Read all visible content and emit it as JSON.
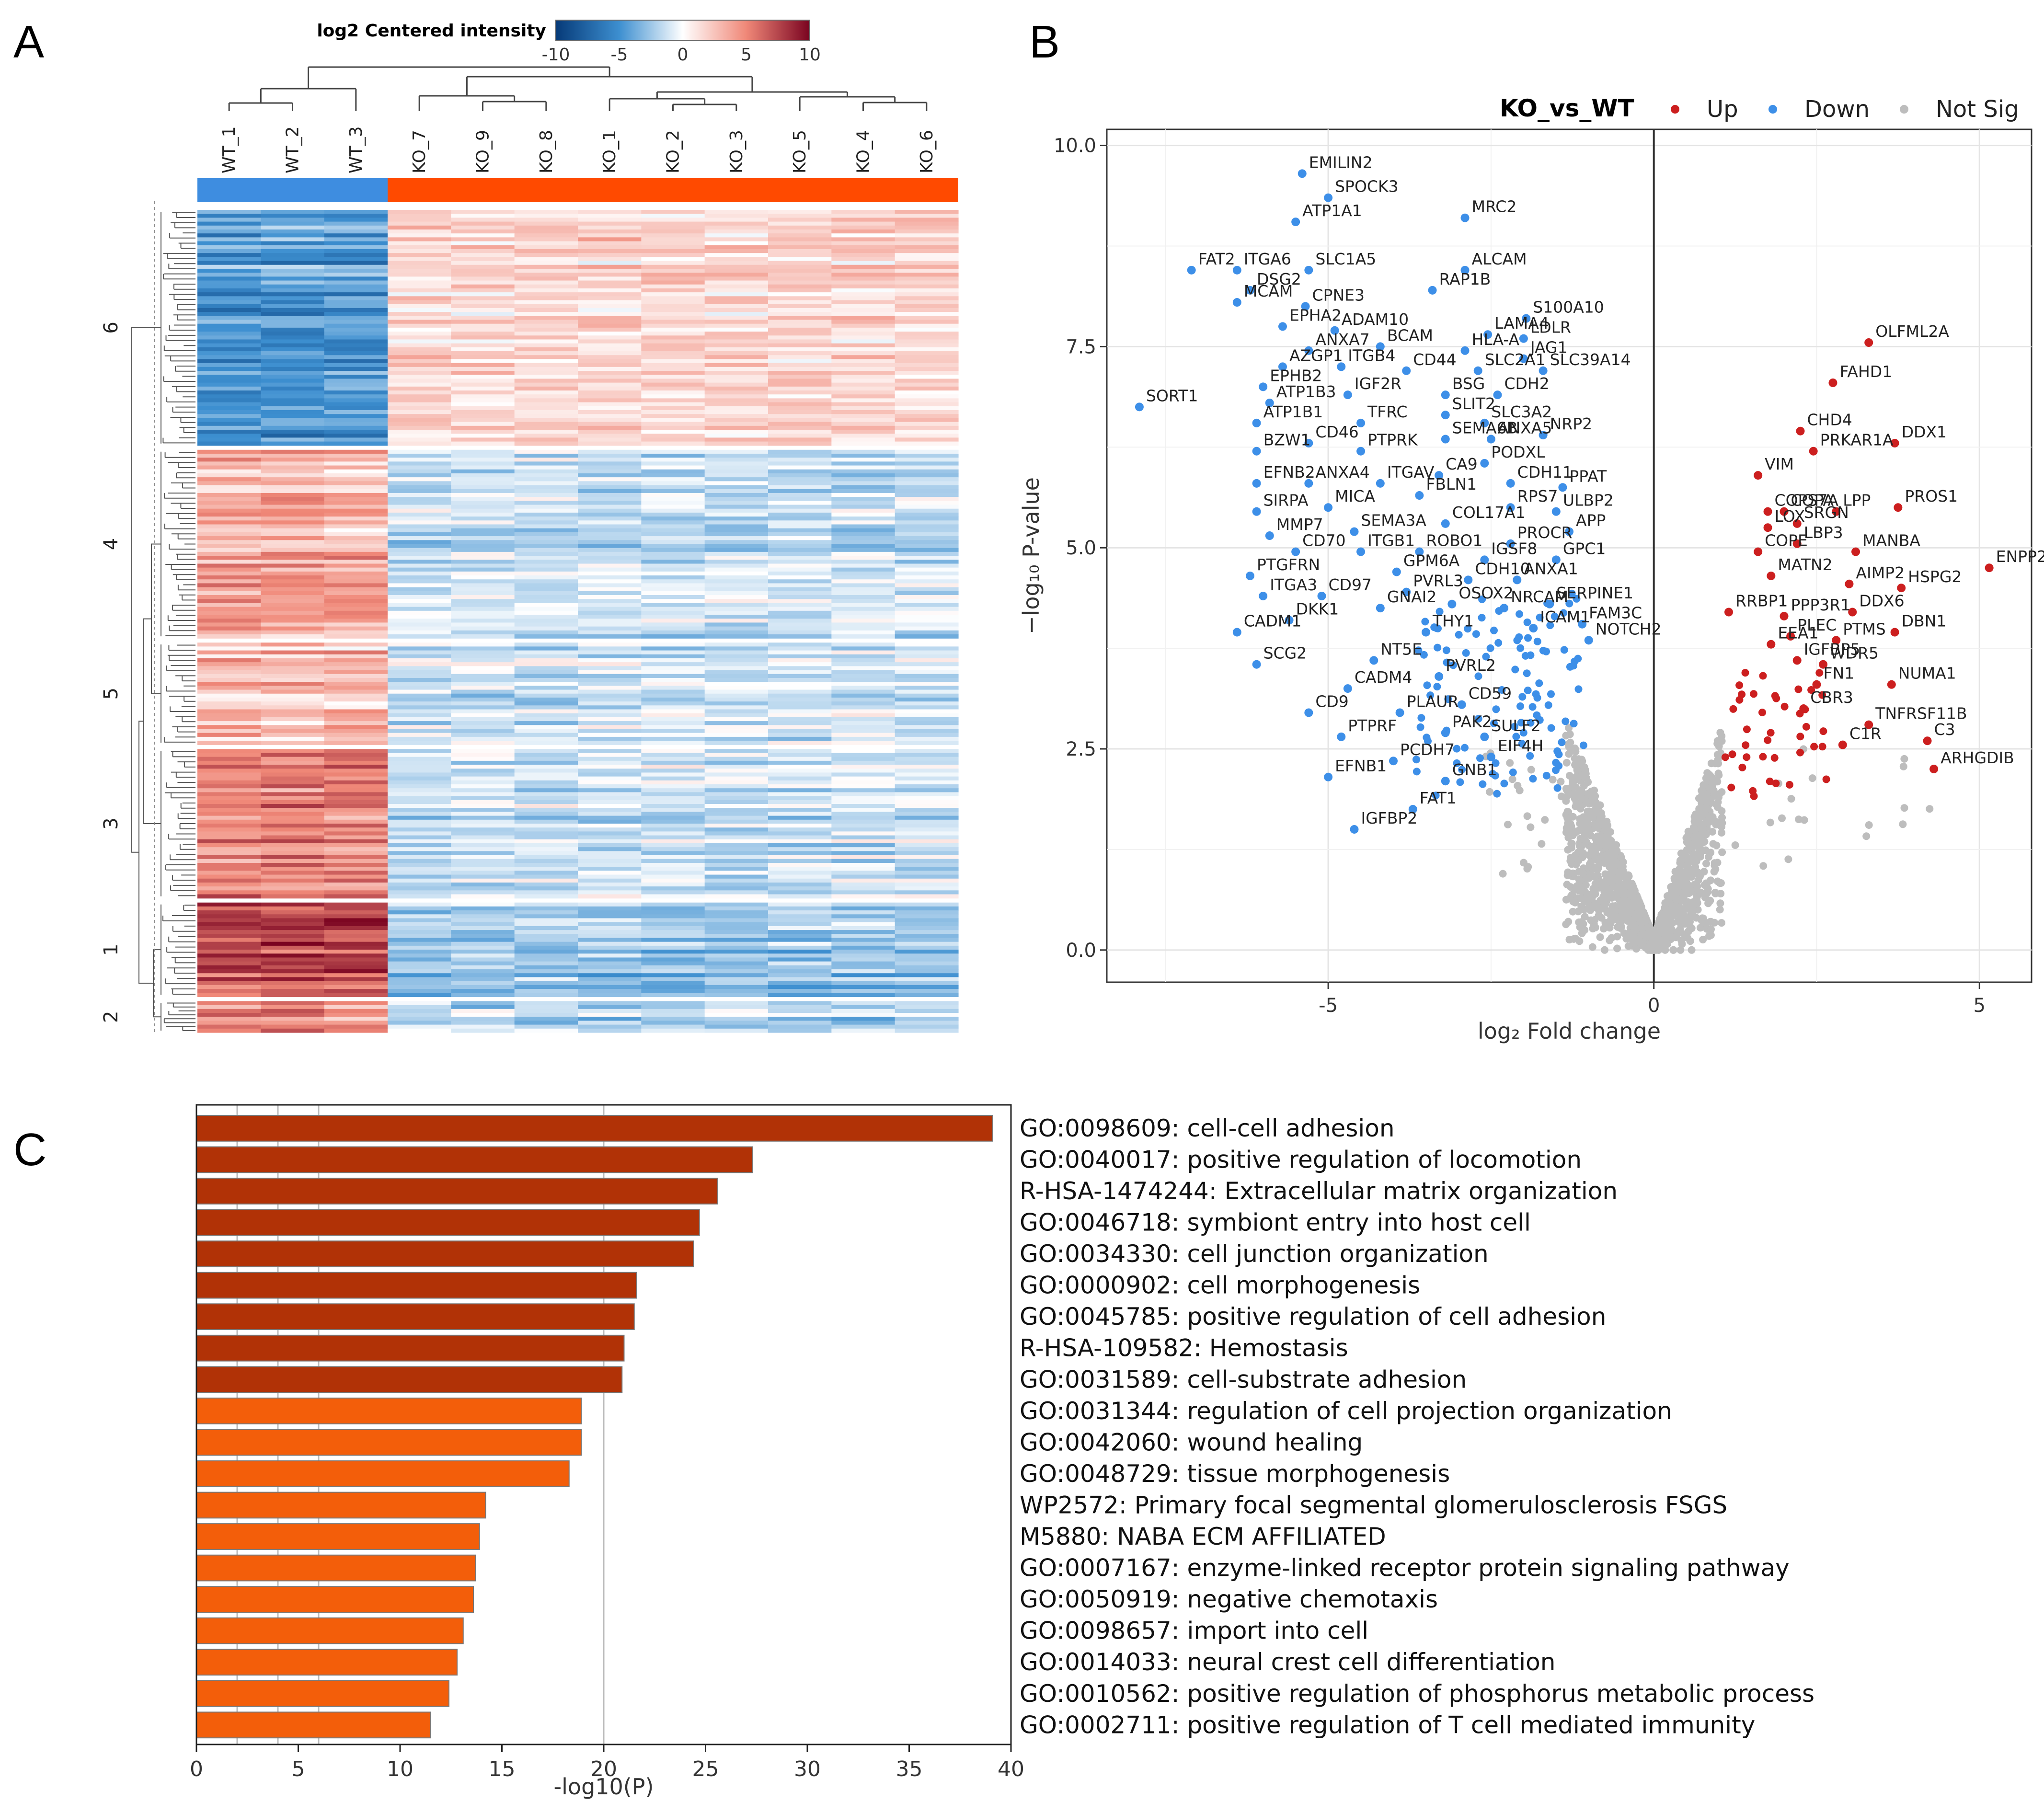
{
  "colors": {
    "wt": "#3e8de0",
    "ko": "#ff4a00",
    "up": "#cc1f1f",
    "down": "#3d8fe8",
    "notsig": "#bdbdbd",
    "bar_dark": "#b13206",
    "bar_light": "#f35e0a"
  },
  "panels": {
    "a": "A",
    "b": "B",
    "c": "C"
  },
  "chart_data": [
    {
      "type": "heatmap",
      "colorbar": {
        "title": "log2 Centered intensity",
        "ticks": [
          "-10",
          "-5",
          "0",
          "5",
          "10"
        ],
        "range": [
          -10,
          10
        ]
      },
      "columns": [
        "WT_1",
        "WT_2",
        "WT_3",
        "KO_7",
        "KO_9",
        "KO_8",
        "KO_1",
        "KO_2",
        "KO_3",
        "KO_5",
        "KO_4",
        "KO_6"
      ],
      "groups": [
        {
          "name": "WT",
          "count": 3
        },
        {
          "name": "KO",
          "count": 9
        }
      ],
      "clusters": [
        {
          "label": "6",
          "rows": 60,
          "wt_mean": -4.5,
          "ko_mean": 1.8
        },
        {
          "label": "4",
          "rows": 48,
          "wt_mean": 3.2,
          "ko_mean": -1.6
        },
        {
          "label": "5",
          "rows": 26,
          "wt_mean": 2.8,
          "ko_mean": -1.2
        },
        {
          "label": "3",
          "rows": 38,
          "wt_mean": 5.0,
          "ko_mean": -1.4
        },
        {
          "label": "1",
          "rows": 24,
          "wt_mean": 7.2,
          "ko_mean": -2.6
        },
        {
          "label": "2",
          "rows": 8,
          "wt_mean": 4.5,
          "ko_mean": -2.0
        }
      ]
    },
    {
      "type": "scatter",
      "title": "KO_vs_WT",
      "legend": [
        "Up",
        "Down",
        "Not Sig"
      ],
      "xlabel": "log₂ Fold change",
      "ylabel": "−log₁₀ P-value",
      "xlim": [
        -8.4,
        5.8
      ],
      "ylim": [
        -0.4,
        10.2
      ],
      "xticks": [
        "-5",
        "0",
        "5"
      ],
      "yticks": [
        "0.0",
        "2.5",
        "5.0",
        "7.5",
        "10.0"
      ],
      "down_genes": [
        {
          "g": "EMILIN2",
          "x": -5.4,
          "y": 9.65
        },
        {
          "g": "SPOCK3",
          "x": -5.0,
          "y": 9.35
        },
        {
          "g": "MRC2",
          "x": -2.9,
          "y": 9.1
        },
        {
          "g": "ATP1A1",
          "x": -5.5,
          "y": 9.05
        },
        {
          "g": "ITGA6",
          "x": -6.4,
          "y": 8.45
        },
        {
          "g": "SLC1A5",
          "x": -5.3,
          "y": 8.45
        },
        {
          "g": "ALCAM",
          "x": -2.9,
          "y": 8.45
        },
        {
          "g": "FAT2",
          "x": -7.1,
          "y": 8.45
        },
        {
          "g": "RAP1B",
          "x": -3.4,
          "y": 8.2
        },
        {
          "g": "DSG2",
          "x": -6.2,
          "y": 8.2
        },
        {
          "g": "MCAM",
          "x": -6.4,
          "y": 8.05
        },
        {
          "g": "CPNE3",
          "x": -5.35,
          "y": 8.0
        },
        {
          "g": "S100A10",
          "x": -1.96,
          "y": 7.85
        },
        {
          "g": "EPHA2",
          "x": -5.7,
          "y": 7.75
        },
        {
          "g": "ADAM10",
          "x": -4.9,
          "y": 7.7
        },
        {
          "g": "LAMA4",
          "x": -2.55,
          "y": 7.65
        },
        {
          "g": "LDLR",
          "x": -2.0,
          "y": 7.6
        },
        {
          "g": "ANXA7",
          "x": -5.3,
          "y": 7.45
        },
        {
          "g": "BCAM",
          "x": -4.2,
          "y": 7.5
        },
        {
          "g": "HLA-A",
          "x": -2.9,
          "y": 7.45
        },
        {
          "g": "JAG1",
          "x": -2.0,
          "y": 7.35
        },
        {
          "g": "AZGP1",
          "x": -5.7,
          "y": 7.25
        },
        {
          "g": "ITGB4",
          "x": -4.8,
          "y": 7.25
        },
        {
          "g": "CD44",
          "x": -3.8,
          "y": 7.2
        },
        {
          "g": "SLC2A1",
          "x": -2.7,
          "y": 7.2
        },
        {
          "g": "SLC39A14",
          "x": -1.7,
          "y": 7.2
        },
        {
          "g": "EPHB2",
          "x": -6.0,
          "y": 7.0
        },
        {
          "g": "IGF2R",
          "x": -4.7,
          "y": 6.9
        },
        {
          "g": "BSG",
          "x": -3.2,
          "y": 6.9
        },
        {
          "g": "CDH2",
          "x": -2.4,
          "y": 6.9
        },
        {
          "g": "SORT1",
          "x": -7.9,
          "y": 6.75
        },
        {
          "g": "ATP1B3",
          "x": -5.9,
          "y": 6.8
        },
        {
          "g": "SLIT2",
          "x": -3.2,
          "y": 6.65
        },
        {
          "g": "SLC3A2",
          "x": -2.6,
          "y": 6.55
        },
        {
          "g": "ATP1B1",
          "x": -6.1,
          "y": 6.55
        },
        {
          "g": "TFRC",
          "x": -4.5,
          "y": 6.55
        },
        {
          "g": "NRP2",
          "x": -1.7,
          "y": 6.4
        },
        {
          "g": "SEMA6B",
          "x": -3.2,
          "y": 6.35
        },
        {
          "g": "ANXA5",
          "x": -2.5,
          "y": 6.35
        },
        {
          "g": "CD46",
          "x": -5.3,
          "y": 6.3
        },
        {
          "g": "PTPRK",
          "x": -4.5,
          "y": 6.2
        },
        {
          "g": "BZW1",
          "x": -6.1,
          "y": 6.2
        },
        {
          "g": "PODXL",
          "x": -2.6,
          "y": 6.05
        },
        {
          "g": "CA9",
          "x": -3.3,
          "y": 5.9
        },
        {
          "g": "EFNB2",
          "x": -6.1,
          "y": 5.8
        },
        {
          "g": "ANXA4",
          "x": -5.3,
          "y": 5.8
        },
        {
          "g": "ITGAV",
          "x": -4.2,
          "y": 5.8
        },
        {
          "g": "CDH11",
          "x": -2.2,
          "y": 5.8
        },
        {
          "g": "PPAT",
          "x": -1.4,
          "y": 5.75
        },
        {
          "g": "FBLN1",
          "x": -3.6,
          "y": 5.65
        },
        {
          "g": "SIRPA",
          "x": -6.1,
          "y": 5.45
        },
        {
          "g": "MICA",
          "x": -5.0,
          "y": 5.5
        },
        {
          "g": "RPS7",
          "x": -2.2,
          "y": 5.5
        },
        {
          "g": "ULBP2",
          "x": -1.5,
          "y": 5.45
        },
        {
          "g": "COL17A1",
          "x": -3.2,
          "y": 5.3
        },
        {
          "g": "MMP7",
          "x": -5.9,
          "y": 5.15
        },
        {
          "g": "SEMA3A",
          "x": -4.6,
          "y": 5.2
        },
        {
          "g": "APP",
          "x": -1.3,
          "y": 5.2
        },
        {
          "g": "PROCR",
          "x": -2.2,
          "y": 5.05
        },
        {
          "g": "CD70",
          "x": -5.5,
          "y": 4.95
        },
        {
          "g": "ITGB1",
          "x": -4.5,
          "y": 4.95
        },
        {
          "g": "ROBO1",
          "x": -3.6,
          "y": 4.95
        },
        {
          "g": "GPC1",
          "x": -1.5,
          "y": 4.85
        },
        {
          "g": "IGSF8",
          "x": -2.6,
          "y": 4.85
        },
        {
          "g": "PTGFRN",
          "x": -6.2,
          "y": 4.65
        },
        {
          "g": "GPM6A",
          "x": -3.95,
          "y": 4.7
        },
        {
          "g": "ANXA1",
          "x": -2.1,
          "y": 4.6
        },
        {
          "g": "CDH10",
          "x": -2.85,
          "y": 4.6
        },
        {
          "g": "ITGA3",
          "x": -6.0,
          "y": 4.4
        },
        {
          "g": "CD97",
          "x": -5.1,
          "y": 4.4
        },
        {
          "g": "PVRL3",
          "x": -3.8,
          "y": 4.45
        },
        {
          "g": "SERPINE1",
          "x": -1.6,
          "y": 4.3
        },
        {
          "g": "FAM3C",
          "x": -1.1,
          "y": 4.05
        },
        {
          "g": "OSOX2",
          "x": -3.1,
          "y": 4.3
        },
        {
          "g": "NRCAM",
          "x": -2.3,
          "y": 4.25
        },
        {
          "g": "GNAI2",
          "x": -4.2,
          "y": 4.25
        },
        {
          "g": "ICAM1",
          "x": -1.85,
          "y": 4.0
        },
        {
          "g": "THY1",
          "x": -3.5,
          "y": 3.95
        },
        {
          "g": "NOTCH2",
          "x": -1.0,
          "y": 3.85
        },
        {
          "g": "CADM1",
          "x": -6.4,
          "y": 3.95
        },
        {
          "g": "DKK1",
          "x": -5.6,
          "y": 4.1
        },
        {
          "g": "NT5E",
          "x": -4.3,
          "y": 3.6
        },
        {
          "g": "SCG2",
          "x": -6.1,
          "y": 3.55
        },
        {
          "g": "PVRL2",
          "x": -3.3,
          "y": 3.4
        },
        {
          "g": "CADM4",
          "x": -4.7,
          "y": 3.25
        },
        {
          "g": "CD59",
          "x": -2.95,
          "y": 3.05
        },
        {
          "g": "CD9",
          "x": -5.3,
          "y": 2.95
        },
        {
          "g": "PLAUR",
          "x": -3.9,
          "y": 2.95
        },
        {
          "g": "PTPRF",
          "x": -4.8,
          "y": 2.65
        },
        {
          "g": "PAK2",
          "x": -3.2,
          "y": 2.7
        },
        {
          "g": "SULF2",
          "x": -2.6,
          "y": 2.65
        },
        {
          "g": "PCDH7",
          "x": -4.0,
          "y": 2.35
        },
        {
          "g": "EIF4H",
          "x": -2.5,
          "y": 2.4
        },
        {
          "g": "EFNB1",
          "x": -5.0,
          "y": 2.15
        },
        {
          "g": "GNB1",
          "x": -3.2,
          "y": 2.1
        },
        {
          "g": "FAT1",
          "x": -3.7,
          "y": 1.75
        },
        {
          "g": "IGFBP2",
          "x": -4.6,
          "y": 1.5
        }
      ],
      "up_genes": [
        {
          "g": "OLFML2A",
          "x": 3.3,
          "y": 7.55
        },
        {
          "g": "FAHD1",
          "x": 2.75,
          "y": 7.05
        },
        {
          "g": "CHD4",
          "x": 2.25,
          "y": 6.45
        },
        {
          "g": "PRKAR1A",
          "x": 2.45,
          "y": 6.2
        },
        {
          "g": "DDX1",
          "x": 3.7,
          "y": 6.3
        },
        {
          "g": "VIM",
          "x": 1.6,
          "y": 5.9
        },
        {
          "g": "COPA",
          "x": 2.0,
          "y": 5.45
        },
        {
          "g": "LPP",
          "x": 2.8,
          "y": 5.45
        },
        {
          "g": "PROS1",
          "x": 3.75,
          "y": 5.5
        },
        {
          "g": "COPS7A",
          "x": 1.75,
          "y": 5.45
        },
        {
          "g": "SRGN",
          "x": 2.2,
          "y": 5.3
        },
        {
          "g": "LOX",
          "x": 1.75,
          "y": 5.25
        },
        {
          "g": "LBP3",
          "x": 2.2,
          "y": 5.05
        },
        {
          "g": "MANBA",
          "x": 3.1,
          "y": 4.95
        },
        {
          "g": "COPE",
          "x": 1.6,
          "y": 4.95
        },
        {
          "g": "ENPP2",
          "x": 5.15,
          "y": 4.75
        },
        {
          "g": "MATN2",
          "x": 1.8,
          "y": 4.65
        },
        {
          "g": "AIMP2",
          "x": 3.0,
          "y": 4.55
        },
        {
          "g": "HSPG2",
          "x": 3.8,
          "y": 4.5
        },
        {
          "g": "RRBP1",
          "x": 1.15,
          "y": 4.2
        },
        {
          "g": "PPP3R1",
          "x": 2.0,
          "y": 4.15
        },
        {
          "g": "DDX6",
          "x": 3.05,
          "y": 4.2
        },
        {
          "g": "DBN1",
          "x": 3.7,
          "y": 3.95
        },
        {
          "g": "PLEC",
          "x": 2.1,
          "y": 3.9
        },
        {
          "g": "PTMS",
          "x": 2.8,
          "y": 3.85
        },
        {
          "g": "EEA1",
          "x": 1.8,
          "y": 3.8
        },
        {
          "g": "IGFBP5",
          "x": 2.2,
          "y": 3.6
        },
        {
          "g": "WDR5",
          "x": 2.6,
          "y": 3.55
        },
        {
          "g": "FN1",
          "x": 2.5,
          "y": 3.3
        },
        {
          "g": "NUMA1",
          "x": 3.65,
          "y": 3.3
        },
        {
          "g": "CBR3",
          "x": 2.3,
          "y": 3.0
        },
        {
          "g": "TNFRSF11B",
          "x": 3.3,
          "y": 2.8
        },
        {
          "g": "C3",
          "x": 4.2,
          "y": 2.6
        },
        {
          "g": "C1R",
          "x": 2.9,
          "y": 2.55
        },
        {
          "g": "ARHGDIB",
          "x": 4.3,
          "y": 2.25
        }
      ]
    },
    {
      "type": "bar",
      "orientation": "horizontal",
      "xlabel": "-log10(P)",
      "xlim": [
        0,
        40
      ],
      "xticks": [
        "0",
        "5",
        "10",
        "15",
        "20",
        "25",
        "30",
        "35",
        "40"
      ],
      "categories": [
        "GO:0098609: cell-cell adhesion",
        "GO:0040017: positive regulation of locomotion",
        "R-HSA-1474244: Extracellular matrix organization",
        "GO:0046718: symbiont entry into host cell",
        "GO:0034330: cell junction organization",
        "GO:0000902: cell morphogenesis",
        "GO:0045785: positive regulation of cell adhesion",
        "R-HSA-109582: Hemostasis",
        "GO:0031589: cell-substrate adhesion",
        "GO:0031344: regulation of cell projection organization",
        "GO:0042060: wound healing",
        "GO:0048729: tissue morphogenesis",
        "WP2572: Primary focal segmental glomerulosclerosis FSGS",
        "M5880: NABA ECM AFFILIATED",
        "GO:0007167: enzyme-linked receptor protein signaling pathway",
        "GO:0050919: negative chemotaxis",
        "GO:0098657: import into cell",
        "GO:0014033: neural crest cell differentiation",
        "GO:0010562: positive regulation of phosphorus metabolic process",
        "GO:0002711: positive regulation of T cell mediated immunity"
      ],
      "values": [
        39.1,
        27.3,
        25.6,
        24.7,
        24.4,
        21.6,
        21.5,
        21.0,
        20.9,
        18.9,
        18.9,
        18.3,
        14.2,
        13.9,
        13.7,
        13.6,
        13.1,
        12.8,
        12.4,
        11.5
      ]
    }
  ]
}
